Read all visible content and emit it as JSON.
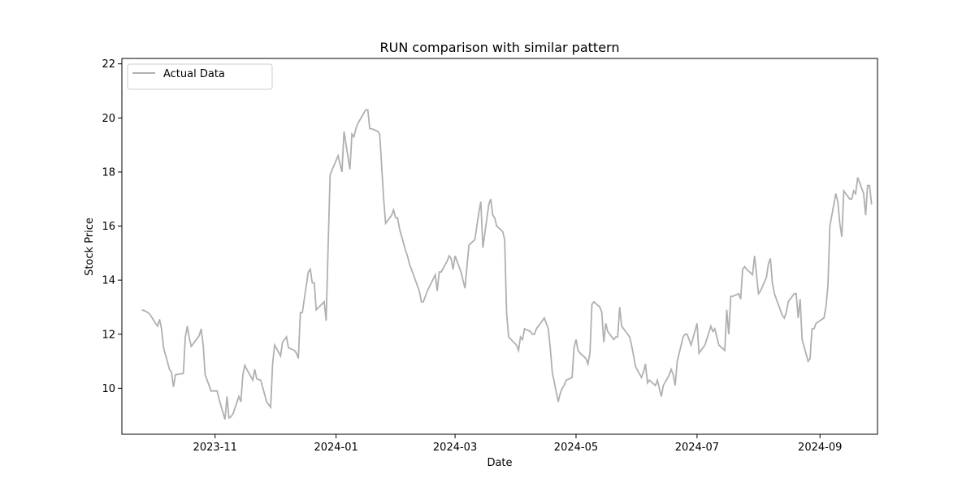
{
  "chart_data": {
    "type": "line",
    "title": "RUN comparison with similar pattern",
    "xlabel": "Date",
    "ylabel": "Stock Price",
    "x_ticks": [
      "2023-11",
      "2024-01",
      "2024-03",
      "2024-05",
      "2024-07",
      "2024-09"
    ],
    "x_tick_dates": [
      "2023-11-01",
      "2024-01-01",
      "2024-03-01",
      "2024-05-01",
      "2024-07-01",
      "2024-09-01"
    ],
    "xlim": [
      "2023-09-15",
      "2024-09-30"
    ],
    "y_ticks": [
      10,
      12,
      14,
      16,
      18,
      20,
      22
    ],
    "ylim": [
      8.3,
      22.2
    ],
    "grid": false,
    "legend_position": "top-left",
    "series": [
      {
        "name": "Actual Data",
        "color": "#b0b0b0",
        "dash": "solid",
        "points": [
          [
            "2023-09-25",
            12.9
          ],
          [
            "2023-09-27",
            12.85
          ],
          [
            "2023-09-29",
            12.75
          ],
          [
            "2023-10-02",
            12.4
          ],
          [
            "2023-10-03",
            12.3
          ],
          [
            "2023-10-04",
            12.55
          ],
          [
            "2023-10-05",
            12.2
          ],
          [
            "2023-10-06",
            11.5
          ],
          [
            "2023-10-09",
            10.7
          ],
          [
            "2023-10-10",
            10.6
          ],
          [
            "2023-10-11",
            10.05
          ],
          [
            "2023-10-12",
            10.5
          ],
          [
            "2023-10-16",
            10.55
          ],
          [
            "2023-10-17",
            11.9
          ],
          [
            "2023-10-18",
            12.3
          ],
          [
            "2023-10-19",
            11.85
          ],
          [
            "2023-10-20",
            11.55
          ],
          [
            "2023-10-23",
            11.85
          ],
          [
            "2023-10-24",
            11.95
          ],
          [
            "2023-10-25",
            12.2
          ],
          [
            "2023-10-26",
            11.6
          ],
          [
            "2023-10-27",
            10.5
          ],
          [
            "2023-10-30",
            9.9
          ],
          [
            "2023-11-01",
            9.9
          ],
          [
            "2023-11-02",
            9.9
          ],
          [
            "2023-11-03",
            9.6
          ],
          [
            "2023-11-06",
            8.85
          ],
          [
            "2023-11-07",
            9.7
          ],
          [
            "2023-11-08",
            8.9
          ],
          [
            "2023-11-09",
            8.95
          ],
          [
            "2023-11-10",
            9.05
          ],
          [
            "2023-11-13",
            9.7
          ],
          [
            "2023-11-14",
            9.5
          ],
          [
            "2023-11-15",
            10.5
          ],
          [
            "2023-11-16",
            10.85
          ],
          [
            "2023-11-17",
            10.7
          ],
          [
            "2023-11-20",
            10.3
          ],
          [
            "2023-11-21",
            10.7
          ],
          [
            "2023-11-22",
            10.35
          ],
          [
            "2023-11-24",
            10.3
          ],
          [
            "2023-11-27",
            9.5
          ],
          [
            "2023-11-28",
            9.4
          ],
          [
            "2023-11-29",
            9.3
          ],
          [
            "2023-11-30",
            10.9
          ],
          [
            "2023-12-01",
            11.6
          ],
          [
            "2023-12-04",
            11.2
          ],
          [
            "2023-12-05",
            11.7
          ],
          [
            "2023-12-06",
            11.8
          ],
          [
            "2023-12-07",
            11.9
          ],
          [
            "2023-12-08",
            11.5
          ],
          [
            "2023-12-11",
            11.4
          ],
          [
            "2023-12-12",
            11.3
          ],
          [
            "2023-12-13",
            11.1
          ],
          [
            "2023-12-14",
            12.8
          ],
          [
            "2023-12-15",
            12.8
          ],
          [
            "2023-12-18",
            14.3
          ],
          [
            "2023-12-19",
            14.4
          ],
          [
            "2023-12-20",
            13.9
          ],
          [
            "2023-12-21",
            13.9
          ],
          [
            "2023-12-22",
            12.9
          ],
          [
            "2023-12-26",
            13.2
          ],
          [
            "2023-12-27",
            12.5
          ],
          [
            "2023-12-28",
            15.3
          ],
          [
            "2023-12-29",
            17.9
          ],
          [
            "2024-01-02",
            18.6
          ],
          [
            "2024-01-03",
            18.3
          ],
          [
            "2024-01-04",
            18.0
          ],
          [
            "2024-01-05",
            19.5
          ],
          [
            "2024-01-08",
            18.1
          ],
          [
            "2024-01-09",
            19.4
          ],
          [
            "2024-01-10",
            19.3
          ],
          [
            "2024-01-11",
            19.6
          ],
          [
            "2024-01-12",
            19.8
          ],
          [
            "2024-01-16",
            20.3
          ],
          [
            "2024-01-17",
            20.3
          ],
          [
            "2024-01-18",
            19.6
          ],
          [
            "2024-01-19",
            19.6
          ],
          [
            "2024-01-22",
            19.5
          ],
          [
            "2024-01-23",
            19.4
          ],
          [
            "2024-01-24",
            18.2
          ],
          [
            "2024-01-25",
            17.0
          ],
          [
            "2024-01-26",
            16.1
          ],
          [
            "2024-01-29",
            16.4
          ],
          [
            "2024-01-30",
            16.6
          ],
          [
            "2024-01-31",
            16.3
          ],
          [
            "2024-02-01",
            16.3
          ],
          [
            "2024-02-02",
            15.9
          ],
          [
            "2024-02-05",
            15.1
          ],
          [
            "2024-02-06",
            14.9
          ],
          [
            "2024-02-07",
            14.6
          ],
          [
            "2024-02-08",
            14.4
          ],
          [
            "2024-02-09",
            14.2
          ],
          [
            "2024-02-12",
            13.6
          ],
          [
            "2024-02-13",
            13.2
          ],
          [
            "2024-02-14",
            13.2
          ],
          [
            "2024-02-15",
            13.4
          ],
          [
            "2024-02-16",
            13.6
          ],
          [
            "2024-02-20",
            14.2
          ],
          [
            "2024-02-21",
            13.6
          ],
          [
            "2024-02-22",
            14.3
          ],
          [
            "2024-02-23",
            14.3
          ],
          [
            "2024-02-26",
            14.7
          ],
          [
            "2024-02-27",
            14.9
          ],
          [
            "2024-02-28",
            14.8
          ],
          [
            "2024-02-29",
            14.4
          ],
          [
            "2024-03-01",
            14.9
          ],
          [
            "2024-03-04",
            14.3
          ],
          [
            "2024-03-05",
            14.0
          ],
          [
            "2024-03-06",
            13.7
          ],
          [
            "2024-03-07",
            14.5
          ],
          [
            "2024-03-08",
            15.3
          ],
          [
            "2024-03-11",
            15.5
          ],
          [
            "2024-03-12",
            16.0
          ],
          [
            "2024-03-13",
            16.5
          ],
          [
            "2024-03-14",
            16.9
          ],
          [
            "2024-03-15",
            15.2
          ],
          [
            "2024-03-18",
            16.8
          ],
          [
            "2024-03-19",
            17.0
          ],
          [
            "2024-03-20",
            16.4
          ],
          [
            "2024-03-21",
            16.3
          ],
          [
            "2024-03-22",
            16.0
          ],
          [
            "2024-03-25",
            15.8
          ],
          [
            "2024-03-26",
            15.5
          ],
          [
            "2024-03-27",
            12.8
          ],
          [
            "2024-03-28",
            11.9
          ],
          [
            "2024-04-01",
            11.6
          ],
          [
            "2024-04-02",
            11.4
          ],
          [
            "2024-04-03",
            11.9
          ],
          [
            "2024-04-04",
            11.8
          ],
          [
            "2024-04-05",
            12.2
          ],
          [
            "2024-04-08",
            12.1
          ],
          [
            "2024-04-09",
            12.0
          ],
          [
            "2024-04-10",
            12.0
          ],
          [
            "2024-04-11",
            12.2
          ],
          [
            "2024-04-12",
            12.3
          ],
          [
            "2024-04-15",
            12.6
          ],
          [
            "2024-04-16",
            12.4
          ],
          [
            "2024-04-17",
            12.2
          ],
          [
            "2024-04-18",
            11.5
          ],
          [
            "2024-04-19",
            10.6
          ],
          [
            "2024-04-22",
            9.5
          ],
          [
            "2024-04-23",
            9.8
          ],
          [
            "2024-04-24",
            10.0
          ],
          [
            "2024-04-25",
            10.1
          ],
          [
            "2024-04-26",
            10.3
          ],
          [
            "2024-04-29",
            10.4
          ],
          [
            "2024-04-30",
            11.5
          ],
          [
            "2024-05-01",
            11.8
          ],
          [
            "2024-05-02",
            11.4
          ],
          [
            "2024-05-03",
            11.3
          ],
          [
            "2024-05-06",
            11.1
          ],
          [
            "2024-05-07",
            10.9
          ],
          [
            "2024-05-08",
            11.3
          ],
          [
            "2024-05-09",
            13.1
          ],
          [
            "2024-05-10",
            13.2
          ],
          [
            "2024-05-13",
            13.0
          ],
          [
            "2024-05-14",
            12.8
          ],
          [
            "2024-05-15",
            11.7
          ],
          [
            "2024-05-16",
            12.4
          ],
          [
            "2024-05-17",
            12.1
          ],
          [
            "2024-05-20",
            11.8
          ],
          [
            "2024-05-21",
            11.9
          ],
          [
            "2024-05-22",
            11.9
          ],
          [
            "2024-05-23",
            13.0
          ],
          [
            "2024-05-24",
            12.3
          ],
          [
            "2024-05-28",
            11.9
          ],
          [
            "2024-05-29",
            11.6
          ],
          [
            "2024-05-30",
            11.2
          ],
          [
            "2024-05-31",
            10.8
          ],
          [
            "2024-06-03",
            10.4
          ],
          [
            "2024-06-04",
            10.6
          ],
          [
            "2024-06-05",
            10.9
          ],
          [
            "2024-06-06",
            10.2
          ],
          [
            "2024-06-07",
            10.3
          ],
          [
            "2024-06-10",
            10.1
          ],
          [
            "2024-06-11",
            10.3
          ],
          [
            "2024-06-12",
            10.0
          ],
          [
            "2024-06-13",
            9.7
          ],
          [
            "2024-06-14",
            10.1
          ],
          [
            "2024-06-17",
            10.5
          ],
          [
            "2024-06-18",
            10.7
          ],
          [
            "2024-06-19",
            10.5
          ],
          [
            "2024-06-20",
            10.1
          ],
          [
            "2024-06-21",
            11.0
          ],
          [
            "2024-06-24",
            11.9
          ],
          [
            "2024-06-25",
            12.0
          ],
          [
            "2024-06-26",
            12.0
          ],
          [
            "2024-06-27",
            11.8
          ],
          [
            "2024-06-28",
            11.6
          ],
          [
            "2024-07-01",
            12.4
          ],
          [
            "2024-07-02",
            11.3
          ],
          [
            "2024-07-03",
            11.4
          ],
          [
            "2024-07-05",
            11.6
          ],
          [
            "2024-07-08",
            12.3
          ],
          [
            "2024-07-09",
            12.1
          ],
          [
            "2024-07-10",
            12.2
          ],
          [
            "2024-07-11",
            11.9
          ],
          [
            "2024-07-12",
            11.6
          ],
          [
            "2024-07-15",
            11.4
          ],
          [
            "2024-07-16",
            12.9
          ],
          [
            "2024-07-17",
            12.0
          ],
          [
            "2024-07-18",
            13.4
          ],
          [
            "2024-07-19",
            13.4
          ],
          [
            "2024-07-22",
            13.5
          ],
          [
            "2024-07-23",
            13.3
          ],
          [
            "2024-07-24",
            14.4
          ],
          [
            "2024-07-25",
            14.5
          ],
          [
            "2024-07-26",
            14.4
          ],
          [
            "2024-07-29",
            14.2
          ],
          [
            "2024-07-30",
            14.9
          ],
          [
            "2024-07-31",
            14.2
          ],
          [
            "2024-08-01",
            13.5
          ],
          [
            "2024-08-02",
            13.6
          ],
          [
            "2024-08-05",
            14.1
          ],
          [
            "2024-08-06",
            14.6
          ],
          [
            "2024-08-07",
            14.8
          ],
          [
            "2024-08-08",
            13.9
          ],
          [
            "2024-08-09",
            13.5
          ],
          [
            "2024-08-12",
            12.9
          ],
          [
            "2024-08-13",
            12.7
          ],
          [
            "2024-08-14",
            12.6
          ],
          [
            "2024-08-15",
            12.8
          ],
          [
            "2024-08-16",
            13.2
          ],
          [
            "2024-08-19",
            13.5
          ],
          [
            "2024-08-20",
            13.5
          ],
          [
            "2024-08-21",
            12.6
          ],
          [
            "2024-08-22",
            13.3
          ],
          [
            "2024-08-23",
            11.8
          ],
          [
            "2024-08-26",
            11.0
          ],
          [
            "2024-08-27",
            11.1
          ],
          [
            "2024-08-28",
            12.2
          ],
          [
            "2024-08-29",
            12.2
          ],
          [
            "2024-08-30",
            12.4
          ],
          [
            "2024-09-03",
            12.6
          ],
          [
            "2024-09-04",
            13.0
          ],
          [
            "2024-09-05",
            13.8
          ],
          [
            "2024-09-06",
            16.0
          ],
          [
            "2024-09-09",
            17.2
          ],
          [
            "2024-09-10",
            16.9
          ],
          [
            "2024-09-11",
            16.1
          ],
          [
            "2024-09-12",
            15.6
          ],
          [
            "2024-09-13",
            17.3
          ],
          [
            "2024-09-16",
            17.0
          ],
          [
            "2024-09-17",
            17.0
          ],
          [
            "2024-09-18",
            17.3
          ],
          [
            "2024-09-19",
            17.2
          ],
          [
            "2024-09-20",
            17.8
          ],
          [
            "2024-09-23",
            17.2
          ],
          [
            "2024-09-24",
            16.4
          ],
          [
            "2024-09-25",
            17.5
          ],
          [
            "2024-09-26",
            17.5
          ],
          [
            "2024-09-27",
            16.8
          ]
        ]
      }
    ]
  }
}
